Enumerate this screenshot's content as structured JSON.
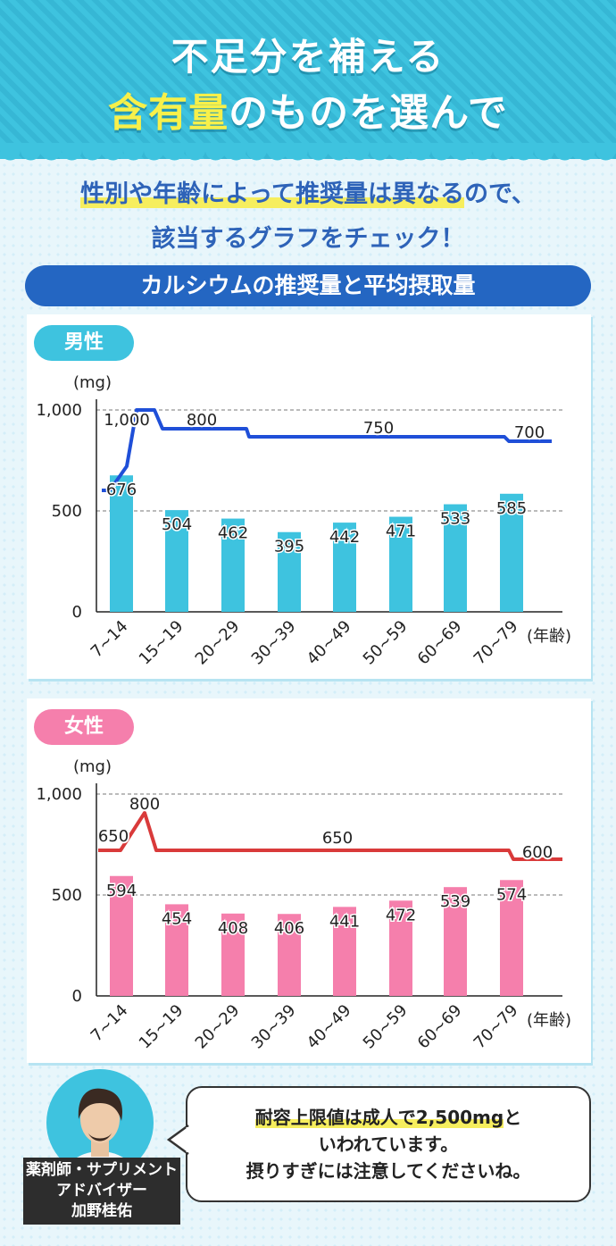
{
  "header": {
    "title_line1": "不足分を補える",
    "title_line2_highlight": "含有量",
    "title_line2_rest": "のものを選んで"
  },
  "subtitle": {
    "line1_highlight": "性別や年齢によって推奨量は異なる",
    "line1_rest": "ので、",
    "line2": "該当するグラフをチェック！"
  },
  "section_title": "カルシウムの推奨量と平均摂取量",
  "colors": {
    "male_bar": "#3ec3df",
    "male_line": "#1f4fd8",
    "female_bar": "#f57fac",
    "female_line": "#d93a3a"
  },
  "chart_data": [
    {
      "type": "bar",
      "panel_label": "男性",
      "unit_label": "(mg)",
      "x_unit_label": "(年齢)",
      "categories": [
        "7~14",
        "15~19",
        "20~29",
        "30~39",
        "40~49",
        "50~59",
        "60~69",
        "70~79"
      ],
      "values": [
        676,
        504,
        462,
        395,
        442,
        471,
        533,
        585
      ],
      "ylim": [
        0,
        1000
      ],
      "yticks": [
        "0",
        "500",
        "1,000"
      ],
      "grid": "dashed at 500 and 1,000",
      "recommended_line": {
        "points": [
          [
            6,
            600
          ],
          [
            11,
            800
          ],
          [
            12,
            1000
          ],
          [
            13,
            1000
          ],
          [
            15,
            800
          ],
          [
            29,
            800
          ],
          [
            30,
            750
          ],
          [
            69,
            750
          ],
          [
            70,
            700
          ],
          [
            79,
            700
          ]
        ],
        "labels": [
          "1,000",
          "800",
          "750",
          "700"
        ]
      }
    },
    {
      "type": "bar",
      "panel_label": "女性",
      "unit_label": "(mg)",
      "x_unit_label": "(年齢)",
      "categories": [
        "7~14",
        "15~19",
        "20~29",
        "30~39",
        "40~49",
        "50~59",
        "60~69",
        "70~79"
      ],
      "values": [
        594,
        454,
        408,
        406,
        441,
        472,
        539,
        574
      ],
      "ylim": [
        0,
        1000
      ],
      "yticks": [
        "0",
        "500",
        "1,000"
      ],
      "grid": "dashed at 500 and 1,000",
      "recommended_line": {
        "points": [
          [
            6,
            650
          ],
          [
            11,
            650
          ],
          [
            12,
            800
          ],
          [
            13,
            900
          ],
          [
            15,
            650
          ],
          [
            69,
            650
          ],
          [
            70,
            600
          ],
          [
            79,
            600
          ]
        ],
        "labels": [
          "650",
          "800",
          "650",
          "600"
        ]
      }
    }
  ],
  "advisor": {
    "title": "薬剤師・サプリメント",
    "title2": "アドバイザー",
    "name": "加野桂佑"
  },
  "bubble": {
    "line1_highlight": "耐容上限値は成人で2,500mg",
    "line1_rest": "と",
    "line2": "いわれています。",
    "line3": "摂りすぎには注意してくださいね。"
  }
}
